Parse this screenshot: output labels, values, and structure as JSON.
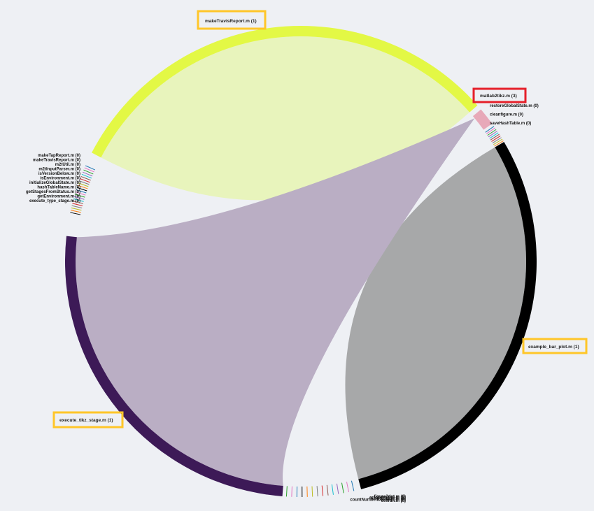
{
  "diagram": {
    "type": "chord",
    "segments": [
      {
        "name": "makeTravisReport.m (1)",
        "color": "#e3f845",
        "fill": "#e8f4bc",
        "highlight": "#ffc629"
      },
      {
        "name": "matlab2tikz.m (3)",
        "color": "#e7a9b9",
        "highlight": "#e5202a"
      },
      {
        "name": "example_bar_plot.m (1)",
        "color": "#000000",
        "fill": "#a7a8a9",
        "highlight": "#ffc629"
      },
      {
        "name": "execute_tikz_stage.m (1)",
        "color": "#3d1a57",
        "fill": "#baaec4",
        "highlight": "#ffc629"
      }
    ],
    "left_cluster_labels": [
      "makeTapReport.m (0)",
      "makeTravisReport.m (0)",
      "m2tUtil.m (0)",
      "m2tInputParser.m (0)",
      "isVersionBelow.m (0)",
      "isEnvironment.m (0)",
      "initializeGlobalState.m (0)",
      "hashTableName.m (0)",
      "getStagesFromStatus.m (0)",
      "getEnvironment.m (0)",
      "execute_type_stage.m (0)"
    ],
    "top_right_cluster_labels": [
      "restoreGlobalState.m (0)",
      "cleanfigure.m (0)",
      "saveHashTable.m (0)"
    ],
    "bottom_cluster_labels": [
      "figure2dot.m (0)",
      "errorHandler.m (0)",
      "emptyStage.m (0)",
      "countNumberOfErrors.m (0)",
      "cellfun.m (0)"
    ]
  }
}
